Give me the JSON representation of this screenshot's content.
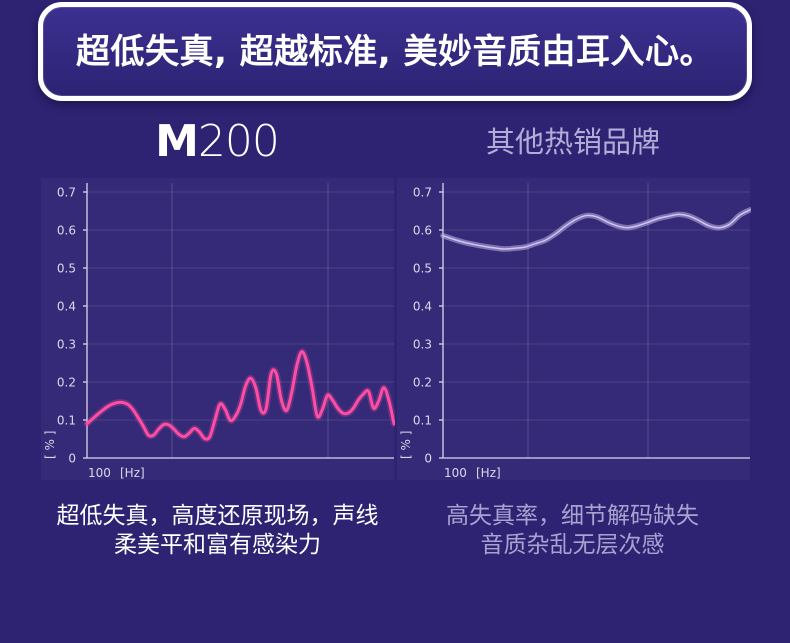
{
  "headline": "超低失真, 超越标准, 美妙音质由耳入心。",
  "columns": [
    {
      "heading_prefix": "M",
      "heading_suffix": "200",
      "caption": [
        "超低失真，高度还原现场，声线",
        "柔美平和富有感染力"
      ]
    },
    {
      "heading": "其他热销品牌",
      "caption": [
        "高失真率，细节解码缺失",
        "音质杂乱无层次感"
      ]
    }
  ],
  "theme": {
    "background": "#2e2373",
    "muted_heading": "#b3acd6",
    "muted_text": "#a9a2d0"
  },
  "chart_data": [
    {
      "type": "line",
      "ylabel": "[ % ]",
      "xlabel": "[Hz]",
      "x_ticks": [
        "100"
      ],
      "y_ticks": [
        0,
        0.1,
        0.2,
        0.3,
        0.4,
        0.5,
        0.6,
        0.7
      ],
      "ylim": [
        0,
        0.7
      ],
      "grid": true,
      "series": [
        {
          "color": "#ff4da3",
          "values": [
            0.09,
            0.102,
            0.114,
            0.125,
            0.135,
            0.142,
            0.146,
            0.146,
            0.141,
            0.127,
            0.106,
            0.084,
            0.06,
            0.06,
            0.076,
            0.088,
            0.087,
            0.076,
            0.062,
            0.056,
            0.066,
            0.078,
            0.068,
            0.051,
            0.056,
            0.1,
            0.142,
            0.128,
            0.099,
            0.11,
            0.14,
            0.19,
            0.21,
            0.184,
            0.125,
            0.13,
            0.222,
            0.222,
            0.152,
            0.125,
            0.172,
            0.243,
            0.28,
            0.25,
            0.185,
            0.11,
            0.128,
            0.165,
            0.152,
            0.131,
            0.118,
            0.118,
            0.13,
            0.152,
            0.168,
            0.176,
            0.131,
            0.15,
            0.185,
            0.152,
            0.09
          ]
        }
      ]
    },
    {
      "type": "line",
      "ylabel": "[ % ]",
      "xlabel": "[Hz]",
      "x_ticks": [
        "100"
      ],
      "y_ticks": [
        0,
        0.1,
        0.2,
        0.3,
        0.4,
        0.5,
        0.6,
        0.7
      ],
      "ylim": [
        0,
        0.7
      ],
      "grid": true,
      "series": [
        {
          "color": "#b0a3e0",
          "values": [
            0.585,
            0.576,
            0.568,
            0.562,
            0.557,
            0.553,
            0.55,
            0.552,
            0.555,
            0.564,
            0.573,
            0.59,
            0.611,
            0.628,
            0.638,
            0.635,
            0.622,
            0.611,
            0.606,
            0.611,
            0.62,
            0.63,
            0.636,
            0.641,
            0.637,
            0.625,
            0.611,
            0.606,
            0.615,
            0.639,
            0.653
          ]
        }
      ]
    }
  ]
}
